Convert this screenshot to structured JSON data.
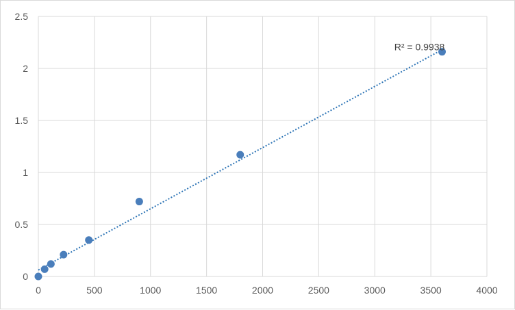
{
  "chart_data": {
    "type": "scatter",
    "title": "",
    "xlabel": "",
    "ylabel": "",
    "xlim": [
      0,
      4000
    ],
    "ylim": [
      0,
      2.5
    ],
    "xticks": [
      0,
      500,
      1000,
      1500,
      2000,
      2500,
      3000,
      3500,
      4000
    ],
    "yticks": [
      0,
      0.5,
      1,
      1.5,
      2,
      2.5
    ],
    "xtick_labels": [
      "0",
      "500",
      "1000",
      "1500",
      "2000",
      "2500",
      "3000",
      "3500",
      "4000"
    ],
    "ytick_labels": [
      "0",
      "0.5",
      "1",
      "1.5",
      "2",
      "2.5"
    ],
    "grid": true,
    "legend": "none",
    "series": [
      {
        "color": "#4a7ebb",
        "x": [
          0,
          56,
          112,
          225,
          450,
          900,
          1800,
          3600
        ],
        "y": [
          0.0,
          0.07,
          0.12,
          0.21,
          0.35,
          0.72,
          1.17,
          2.16
        ]
      }
    ],
    "trendline": {
      "type": "linear",
      "style": "dotted",
      "color": "#2e75b6",
      "x_range": [
        0,
        3600
      ],
      "y_range": [
        0.062,
        2.18
      ],
      "r_squared_label": "R² = 0.9938"
    }
  }
}
